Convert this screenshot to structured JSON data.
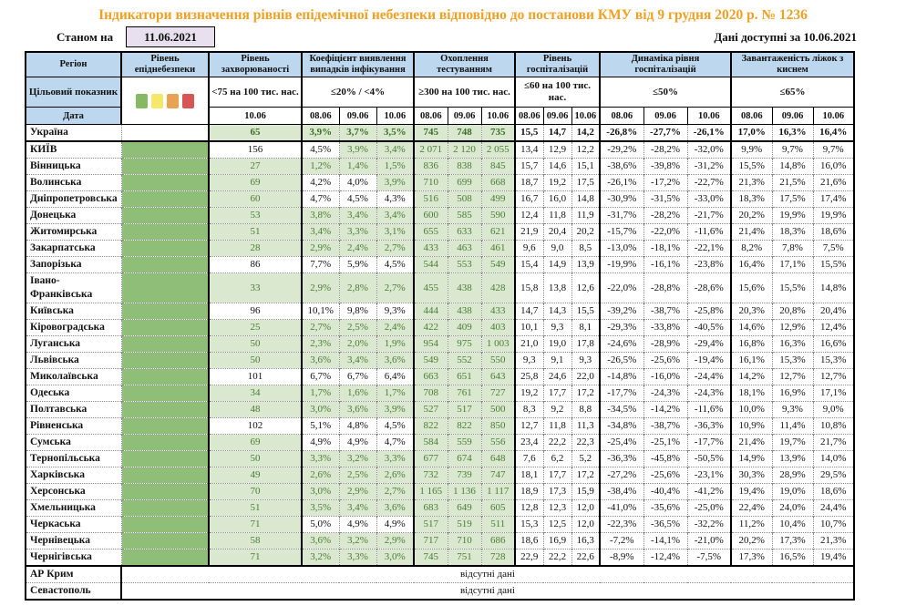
{
  "title": "Індикатори визначення рівнів епідемічної небезпеки відповідно до постанови КМУ від 9 грудня 2020 р. № 1236",
  "as_of": {
    "label": "Станом на",
    "date": "11.06.2021"
  },
  "available": {
    "label": "Дані доступні за",
    "date": "10.06.2021"
  },
  "columns": {
    "region": "Регіон",
    "target_row_label": "Цільовий показник",
    "date_row_label": "Дата",
    "groups": [
      {
        "name": "Рівень епіднебезпеки"
      },
      {
        "name": "Рівень захворюваності",
        "target": "<75 на 100 тис. нас.",
        "dates": [
          "10.06"
        ]
      },
      {
        "name": "Коефіцієнт виявлення випадків інфікування",
        "target": "≤20% / <4%",
        "dates": [
          "08.06",
          "09.06",
          "10.06"
        ]
      },
      {
        "name": "Охоплення тестуванням",
        "target": "≥300 на 100 тис. нас.",
        "dates": [
          "08.06",
          "09.06",
          "10.06"
        ]
      },
      {
        "name": "Рівень госпіталізацій",
        "target": "≤60 на 100 тис. нас.",
        "dates": [
          "08.06",
          "09.06",
          "10.06"
        ]
      },
      {
        "name": "Динаміка рівня госпіталізацій",
        "target": "≤50%",
        "dates": [
          "08.06",
          "09.06",
          "10.06"
        ]
      },
      {
        "name": "Завантаженість ліжок з киснем",
        "target": "≤65%",
        "dates": [
          "08.06",
          "09.06",
          "10.06"
        ]
      }
    ]
  },
  "legend": {
    "colors": [
      "#85B963",
      "#F5E868",
      "#E8A254",
      "#D85555"
    ],
    "names": [
      "green-level",
      "yellow-level",
      "orange-level",
      "red-level"
    ]
  },
  "theme_colors": {
    "header_bg": "#BDD7EE",
    "pass_bg": "#D9E8CE",
    "pass_text": "#4D7B39",
    "danger_column": "#8FBE78",
    "title_text": "#F2A024",
    "asof_box_bg": "#E8E0EE"
  },
  "rows": [
    {
      "r": "Україна",
      "bold": true,
      "inc": [
        "65",
        1
      ],
      "coef": [
        [
          "3,9%",
          1
        ],
        [
          "3,7%",
          1
        ],
        [
          "3,5%",
          1
        ]
      ],
      "test": [
        [
          "745",
          1
        ],
        [
          "748",
          1
        ],
        [
          "735",
          1
        ]
      ],
      "hosp": [
        "15,5",
        "14,7",
        "14,2"
      ],
      "dyn": [
        "-26,8%",
        "-27,7%",
        "-26,1%"
      ],
      "beds": [
        "17,0%",
        "16,3%",
        "16,4%"
      ]
    },
    {
      "r": "КИЇВ",
      "solidTop": true,
      "inc": [
        "156",
        0
      ],
      "coef": [
        [
          "4,5%",
          0
        ],
        [
          "3,9%",
          1
        ],
        [
          "3,4%",
          1
        ]
      ],
      "test": [
        [
          "2 071",
          1
        ],
        [
          "2 120",
          1
        ],
        [
          "2 055",
          1
        ]
      ],
      "hosp": [
        "13,4",
        "12,9",
        "12,2"
      ],
      "dyn": [
        "-29,2%",
        "-28,2%",
        "-32,0%"
      ],
      "beds": [
        "9,9%",
        "9,7%",
        "9,7%"
      ]
    },
    {
      "r": "Вінницька",
      "inc": [
        "27",
        1
      ],
      "coef": [
        [
          "1,2%",
          1
        ],
        [
          "1,4%",
          1
        ],
        [
          "1,5%",
          1
        ]
      ],
      "test": [
        [
          "836",
          1
        ],
        [
          "838",
          1
        ],
        [
          "845",
          1
        ]
      ],
      "hosp": [
        "15,7",
        "14,6",
        "15,1"
      ],
      "dyn": [
        "-38,6%",
        "-39,8%",
        "-31,2%"
      ],
      "beds": [
        "15,5%",
        "14,8%",
        "16,0%"
      ]
    },
    {
      "r": "Волинська",
      "inc": [
        "69",
        1
      ],
      "coef": [
        [
          "4,2%",
          0
        ],
        [
          "4,0%",
          0
        ],
        [
          "3,9%",
          1
        ]
      ],
      "test": [
        [
          "710",
          1
        ],
        [
          "699",
          1
        ],
        [
          "668",
          1
        ]
      ],
      "hosp": [
        "18,7",
        "19,2",
        "17,5"
      ],
      "dyn": [
        "-26,1%",
        "-17,2%",
        "-22,7%"
      ],
      "beds": [
        "21,3%",
        "21,5%",
        "21,6%"
      ]
    },
    {
      "r": "Дніпропетровська",
      "inc": [
        "60",
        1
      ],
      "coef": [
        [
          "4,7%",
          0
        ],
        [
          "4,5%",
          0
        ],
        [
          "4,3%",
          0
        ]
      ],
      "test": [
        [
          "516",
          1
        ],
        [
          "508",
          1
        ],
        [
          "499",
          1
        ]
      ],
      "hosp": [
        "16,7",
        "16,0",
        "14,8"
      ],
      "dyn": [
        "-30,9%",
        "-31,5%",
        "-33,0%"
      ],
      "beds": [
        "18,3%",
        "17,5%",
        "17,4%"
      ]
    },
    {
      "r": "Донецька",
      "inc": [
        "53",
        1
      ],
      "coef": [
        [
          "3,8%",
          1
        ],
        [
          "3,4%",
          1
        ],
        [
          "3,4%",
          1
        ]
      ],
      "test": [
        [
          "600",
          1
        ],
        [
          "585",
          1
        ],
        [
          "590",
          1
        ]
      ],
      "hosp": [
        "12,4",
        "11,8",
        "11,9"
      ],
      "dyn": [
        "-31,7%",
        "-28,2%",
        "-21,7%"
      ],
      "beds": [
        "20,2%",
        "19,9%",
        "19,9%"
      ]
    },
    {
      "r": "Житомирська",
      "inc": [
        "51",
        1
      ],
      "coef": [
        [
          "3,4%",
          1
        ],
        [
          "3,3%",
          1
        ],
        [
          "3,1%",
          1
        ]
      ],
      "test": [
        [
          "655",
          1
        ],
        [
          "633",
          1
        ],
        [
          "621",
          1
        ]
      ],
      "hosp": [
        "21,9",
        "20,4",
        "20,2"
      ],
      "dyn": [
        "-15,7%",
        "-22,0%",
        "-11,6%"
      ],
      "beds": [
        "21,4%",
        "18,3%",
        "18,6%"
      ]
    },
    {
      "r": "Закарпатська",
      "inc": [
        "28",
        1
      ],
      "coef": [
        [
          "2,9%",
          1
        ],
        [
          "2,4%",
          1
        ],
        [
          "2,7%",
          1
        ]
      ],
      "test": [
        [
          "433",
          1
        ],
        [
          "463",
          1
        ],
        [
          "461",
          1
        ]
      ],
      "hosp": [
        "9,6",
        "9,0",
        "8,5"
      ],
      "dyn": [
        "-13,0%",
        "-18,1%",
        "-22,1%"
      ],
      "beds": [
        "8,2%",
        "7,8%",
        "7,5%"
      ]
    },
    {
      "r": "Запорізька",
      "inc": [
        "86",
        0
      ],
      "coef": [
        [
          "7,7%",
          0
        ],
        [
          "5,9%",
          0
        ],
        [
          "4,5%",
          0
        ]
      ],
      "test": [
        [
          "544",
          1
        ],
        [
          "553",
          1
        ],
        [
          "549",
          1
        ]
      ],
      "hosp": [
        "15,4",
        "14,9",
        "13,9"
      ],
      "dyn": [
        "-19,9%",
        "-16,1%",
        "-23,8%"
      ],
      "beds": [
        "16,4%",
        "17,1%",
        "15,5%"
      ]
    },
    {
      "r": "Івано-Франківська",
      "tall": true,
      "inc": [
        "33",
        1
      ],
      "coef": [
        [
          "2,9%",
          1
        ],
        [
          "2,8%",
          1
        ],
        [
          "2,7%",
          1
        ]
      ],
      "test": [
        [
          "455",
          1
        ],
        [
          "438",
          1
        ],
        [
          "428",
          1
        ]
      ],
      "hosp": [
        "15,8",
        "13,8",
        "12,6"
      ],
      "dyn": [
        "-22,0%",
        "-28,8%",
        "-28,6%"
      ],
      "beds": [
        "15,6%",
        "15,5%",
        "14,8%"
      ]
    },
    {
      "r": "Київська",
      "inc": [
        "96",
        0
      ],
      "coef": [
        [
          "10,1%",
          0
        ],
        [
          "9,8%",
          0
        ],
        [
          "9,3%",
          0
        ]
      ],
      "test": [
        [
          "444",
          1
        ],
        [
          "438",
          1
        ],
        [
          "433",
          1
        ]
      ],
      "hosp": [
        "14,7",
        "14,3",
        "15,5"
      ],
      "dyn": [
        "-39,2%",
        "-38,7%",
        "-25,8%"
      ],
      "beds": [
        "20,3%",
        "20,8%",
        "20,4%"
      ]
    },
    {
      "r": "Кіровоградська",
      "inc": [
        "25",
        1
      ],
      "coef": [
        [
          "2,7%",
          1
        ],
        [
          "2,5%",
          1
        ],
        [
          "2,4%",
          1
        ]
      ],
      "test": [
        [
          "422",
          1
        ],
        [
          "409",
          1
        ],
        [
          "403",
          1
        ]
      ],
      "hosp": [
        "10,1",
        "9,3",
        "8,1"
      ],
      "dyn": [
        "-29,3%",
        "-33,8%",
        "-40,5%"
      ],
      "beds": [
        "14,6%",
        "12,9%",
        "12,4%"
      ]
    },
    {
      "r": "Луганська",
      "inc": [
        "50",
        1
      ],
      "coef": [
        [
          "2,3%",
          1
        ],
        [
          "2,0%",
          1
        ],
        [
          "1,9%",
          1
        ]
      ],
      "test": [
        [
          "954",
          1
        ],
        [
          "975",
          1
        ],
        [
          "1 003",
          1
        ]
      ],
      "hosp": [
        "21,0",
        "19,0",
        "17,8"
      ],
      "dyn": [
        "-24,6%",
        "-28,9%",
        "-29,4%"
      ],
      "beds": [
        "16,8%",
        "16,3%",
        "16,6%"
      ]
    },
    {
      "r": "Львівська",
      "inc": [
        "50",
        1
      ],
      "coef": [
        [
          "3,6%",
          1
        ],
        [
          "3,4%",
          1
        ],
        [
          "3,6%",
          1
        ]
      ],
      "test": [
        [
          "549",
          1
        ],
        [
          "552",
          1
        ],
        [
          "550",
          1
        ]
      ],
      "hosp": [
        "9,3",
        "9,1",
        "9,3"
      ],
      "dyn": [
        "-26,5%",
        "-25,6%",
        "-19,4%"
      ],
      "beds": [
        "16,1%",
        "15,3%",
        "15,3%"
      ]
    },
    {
      "r": "Миколаївська",
      "inc": [
        "101",
        0
      ],
      "coef": [
        [
          "6,7%",
          0
        ],
        [
          "6,7%",
          0
        ],
        [
          "6,4%",
          0
        ]
      ],
      "test": [
        [
          "663",
          1
        ],
        [
          "651",
          1
        ],
        [
          "643",
          1
        ]
      ],
      "hosp": [
        "25,8",
        "24,6",
        "22,0"
      ],
      "dyn": [
        "-14,8%",
        "-16,0%",
        "-24,4%"
      ],
      "beds": [
        "14,2%",
        "12,7%",
        "12,7%"
      ]
    },
    {
      "r": "Одеська",
      "inc": [
        "34",
        1
      ],
      "coef": [
        [
          "1,7%",
          1
        ],
        [
          "1,6%",
          1
        ],
        [
          "1,7%",
          1
        ]
      ],
      "test": [
        [
          "708",
          1
        ],
        [
          "761",
          1
        ],
        [
          "727",
          1
        ]
      ],
      "hosp": [
        "19,2",
        "17,7",
        "17,2"
      ],
      "dyn": [
        "-17,7%",
        "-24,3%",
        "-24,3%"
      ],
      "beds": [
        "18,1%",
        "16,9%",
        "17,1%"
      ]
    },
    {
      "r": "Полтавська",
      "inc": [
        "48",
        1
      ],
      "coef": [
        [
          "3,0%",
          1
        ],
        [
          "3,6%",
          1
        ],
        [
          "3,9%",
          1
        ]
      ],
      "test": [
        [
          "527",
          1
        ],
        [
          "517",
          1
        ],
        [
          "500",
          1
        ]
      ],
      "hosp": [
        "8,3",
        "9,2",
        "8,8"
      ],
      "dyn": [
        "-34,5%",
        "-14,2%",
        "-11,6%"
      ],
      "beds": [
        "10,0%",
        "9,3%",
        "9,0%"
      ]
    },
    {
      "r": "Рівненська",
      "inc": [
        "102",
        0
      ],
      "coef": [
        [
          "5,1%",
          0
        ],
        [
          "4,8%",
          0
        ],
        [
          "4,5%",
          0
        ]
      ],
      "test": [
        [
          "822",
          1
        ],
        [
          "822",
          1
        ],
        [
          "850",
          1
        ]
      ],
      "hosp": [
        "12,7",
        "11,8",
        "11,3"
      ],
      "dyn": [
        "-34,8%",
        "-38,7%",
        "-36,3%"
      ],
      "beds": [
        "10,9%",
        "11,4%",
        "10,8%"
      ]
    },
    {
      "r": "Сумська",
      "inc": [
        "69",
        1
      ],
      "coef": [
        [
          "4,9%",
          0
        ],
        [
          "4,9%",
          0
        ],
        [
          "4,7%",
          0
        ]
      ],
      "test": [
        [
          "584",
          1
        ],
        [
          "559",
          1
        ],
        [
          "556",
          1
        ]
      ],
      "hosp": [
        "23,4",
        "22,2",
        "22,3"
      ],
      "dyn": [
        "-25,4%",
        "-25,1%",
        "-17,7%"
      ],
      "beds": [
        "21,4%",
        "19,7%",
        "21,7%"
      ]
    },
    {
      "r": "Тернопільська",
      "inc": [
        "50",
        1
      ],
      "coef": [
        [
          "3,3%",
          1
        ],
        [
          "3,2%",
          1
        ],
        [
          "3,3%",
          1
        ]
      ],
      "test": [
        [
          "677",
          1
        ],
        [
          "674",
          1
        ],
        [
          "648",
          1
        ]
      ],
      "hosp": [
        "7,6",
        "6,2",
        "5,2"
      ],
      "dyn": [
        "-36,3%",
        "-45,8%",
        "-50,5%"
      ],
      "beds": [
        "14,9%",
        "13,9%",
        "14,0%"
      ]
    },
    {
      "r": "Харківська",
      "inc": [
        "49",
        1
      ],
      "coef": [
        [
          "2,6%",
          1
        ],
        [
          "2,5%",
          1
        ],
        [
          "2,6%",
          1
        ]
      ],
      "test": [
        [
          "732",
          1
        ],
        [
          "739",
          1
        ],
        [
          "747",
          1
        ]
      ],
      "hosp": [
        "18,1",
        "17,7",
        "17,2"
      ],
      "dyn": [
        "-27,2%",
        "-25,6%",
        "-23,1%"
      ],
      "beds": [
        "30,3%",
        "28,9%",
        "29,5%"
      ]
    },
    {
      "r": "Херсонська",
      "inc": [
        "70",
        1
      ],
      "coef": [
        [
          "3,0%",
          1
        ],
        [
          "2,9%",
          1
        ],
        [
          "2,7%",
          1
        ]
      ],
      "test": [
        [
          "1 165",
          1
        ],
        [
          "1 136",
          1
        ],
        [
          "1 117",
          1
        ]
      ],
      "hosp": [
        "18,9",
        "17,3",
        "15,9"
      ],
      "dyn": [
        "-38,4%",
        "-40,4%",
        "-41,2%"
      ],
      "beds": [
        "19,4%",
        "19,0%",
        "18,6%"
      ]
    },
    {
      "r": "Хмельницька",
      "inc": [
        "51",
        1
      ],
      "coef": [
        [
          "3,5%",
          1
        ],
        [
          "3,4%",
          1
        ],
        [
          "3,6%",
          1
        ]
      ],
      "test": [
        [
          "683",
          1
        ],
        [
          "649",
          1
        ],
        [
          "605",
          1
        ]
      ],
      "hosp": [
        "12,8",
        "12,3",
        "12,0"
      ],
      "dyn": [
        "-41,0%",
        "-35,6%",
        "-25,0%"
      ],
      "beds": [
        "22,4%",
        "24,0%",
        "24,4%"
      ]
    },
    {
      "r": "Черкаська",
      "inc": [
        "71",
        1
      ],
      "coef": [
        [
          "5,0%",
          0
        ],
        [
          "4,9%",
          0
        ],
        [
          "4,9%",
          0
        ]
      ],
      "test": [
        [
          "517",
          1
        ],
        [
          "519",
          1
        ],
        [
          "511",
          1
        ]
      ],
      "hosp": [
        "15,3",
        "12,5",
        "12,0"
      ],
      "dyn": [
        "-22,3%",
        "-36,5%",
        "-32,2%"
      ],
      "beds": [
        "11,2%",
        "10,4%",
        "10,7%"
      ]
    },
    {
      "r": "Чернівецька",
      "inc": [
        "58",
        1
      ],
      "coef": [
        [
          "3,6%",
          1
        ],
        [
          "3,2%",
          1
        ],
        [
          "2,9%",
          1
        ]
      ],
      "test": [
        [
          "717",
          1
        ],
        [
          "710",
          1
        ],
        [
          "686",
          1
        ]
      ],
      "hosp": [
        "18,6",
        "16,9",
        "16,3"
      ],
      "dyn": [
        "-7,2%",
        "-14,1%",
        "-21,0%"
      ],
      "beds": [
        "20,2%",
        "17,3%",
        "21,3%"
      ]
    },
    {
      "r": "Чернігівська",
      "inc": [
        "71",
        1
      ],
      "coef": [
        [
          "3,2%",
          1
        ],
        [
          "3,3%",
          1
        ],
        [
          "3,0%",
          1
        ]
      ],
      "test": [
        [
          "745",
          1
        ],
        [
          "751",
          1
        ],
        [
          "728",
          1
        ]
      ],
      "hosp": [
        "22,9",
        "22,2",
        "22,6"
      ],
      "dyn": [
        "-8,9%",
        "-12,4%",
        "-7,5%"
      ],
      "beds": [
        "17,3%",
        "16,5%",
        "19,4%"
      ]
    }
  ],
  "no_data_rows": [
    {
      "r": "АР Крим",
      "text": "відсутні дані"
    },
    {
      "r": "Севастополь",
      "text": "відсутні дані"
    }
  ]
}
